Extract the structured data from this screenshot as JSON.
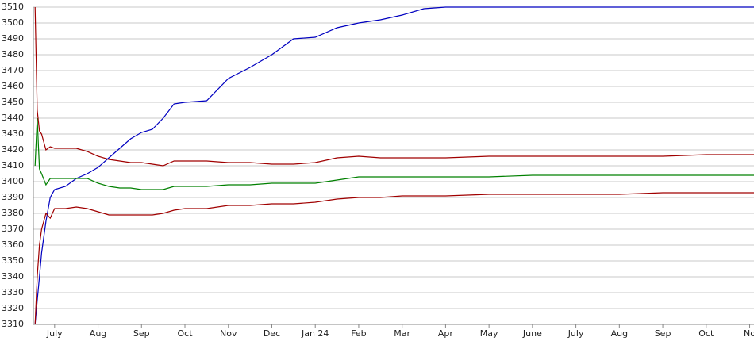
{
  "chart_data": {
    "type": "line",
    "x": [
      -0.45,
      -0.4,
      -0.35,
      -0.3,
      -0.2,
      -0.1,
      0,
      0.25,
      0.5,
      0.75,
      1,
      1.25,
      1.5,
      1.75,
      2,
      2.25,
      2.5,
      2.75,
      3,
      3.5,
      4,
      4.5,
      5,
      5.5,
      6,
      6.5,
      7,
      7.5,
      8,
      8.5,
      9,
      10,
      11,
      12,
      13,
      14,
      15,
      16.1
    ],
    "series": [
      {
        "color": "#0000c0",
        "values": [
          3310,
          3325,
          3340,
          3355,
          3375,
          3390,
          3395,
          3397,
          3402,
          3405,
          3409,
          3415,
          3421,
          3427,
          3431,
          3433,
          3440,
          3449,
          3450,
          3451,
          3465,
          3472,
          3480,
          3490,
          3491,
          3497,
          3500,
          3502,
          3505,
          3509,
          3510,
          3510,
          3510,
          3510,
          3510,
          3510,
          3510,
          3510
        ]
      },
      {
        "color": "#a00000",
        "values": [
          3510,
          3445,
          3432,
          3430,
          3420,
          3422,
          3421,
          3421,
          3421,
          3419,
          3416,
          3414,
          3413,
          3412,
          3412,
          3411,
          3410,
          3413,
          3413,
          3413,
          3412,
          3412,
          3411,
          3411,
          3412,
          3415,
          3416,
          3415,
          3415,
          3415,
          3415,
          3416,
          3416,
          3416,
          3416,
          3416,
          3417,
          3417
        ]
      },
      {
        "color": "#008000",
        "values": [
          3410,
          3440,
          3408,
          3405,
          3398,
          3402,
          3402,
          3402,
          3402,
          3402,
          3399,
          3397,
          3396,
          3396,
          3395,
          3395,
          3395,
          3397,
          3397,
          3397,
          3398,
          3398,
          3399,
          3399,
          3399,
          3401,
          3403,
          3403,
          3403,
          3403,
          3403,
          3403,
          3404,
          3404,
          3404,
          3404,
          3404,
          3404
        ]
      },
      {
        "color": "#a00000",
        "values": [
          3310,
          3340,
          3360,
          3370,
          3380,
          3377,
          3383,
          3383,
          3384,
          3383,
          3381,
          3379,
          3379,
          3379,
          3379,
          3379,
          3380,
          3382,
          3383,
          3383,
          3385,
          3385,
          3386,
          3386,
          3387,
          3389,
          3390,
          3390,
          3391,
          3391,
          3391,
          3392,
          3392,
          3392,
          3392,
          3393,
          3393,
          3393
        ]
      }
    ],
    "xlim": [
      -0.49,
      16.1
    ],
    "xticks": [
      {
        "value": 0,
        "label": "July"
      },
      {
        "value": 1,
        "label": "Aug"
      },
      {
        "value": 2,
        "label": "Sep"
      },
      {
        "value": 3,
        "label": "Oct"
      },
      {
        "value": 4,
        "label": "Nov"
      },
      {
        "value": 5,
        "label": "Dec"
      },
      {
        "value": 6,
        "label": "Jan 24"
      },
      {
        "value": 7,
        "label": "Feb"
      },
      {
        "value": 8,
        "label": "Mar"
      },
      {
        "value": 9,
        "label": "Apr"
      },
      {
        "value": 10,
        "label": "May"
      },
      {
        "value": 11,
        "label": "June"
      },
      {
        "value": 12,
        "label": "July"
      },
      {
        "value": 13,
        "label": "Aug"
      },
      {
        "value": 14,
        "label": "Sep"
      },
      {
        "value": 15,
        "label": "Oct"
      },
      {
        "value": 16,
        "label": "No"
      }
    ],
    "ylim": [
      3310,
      3510
    ],
    "yticks": [
      3310,
      3320,
      3330,
      3340,
      3350,
      3360,
      3370,
      3380,
      3390,
      3400,
      3410,
      3420,
      3430,
      3440,
      3450,
      3460,
      3470,
      3480,
      3490,
      3500,
      3510
    ],
    "grid": true
  }
}
